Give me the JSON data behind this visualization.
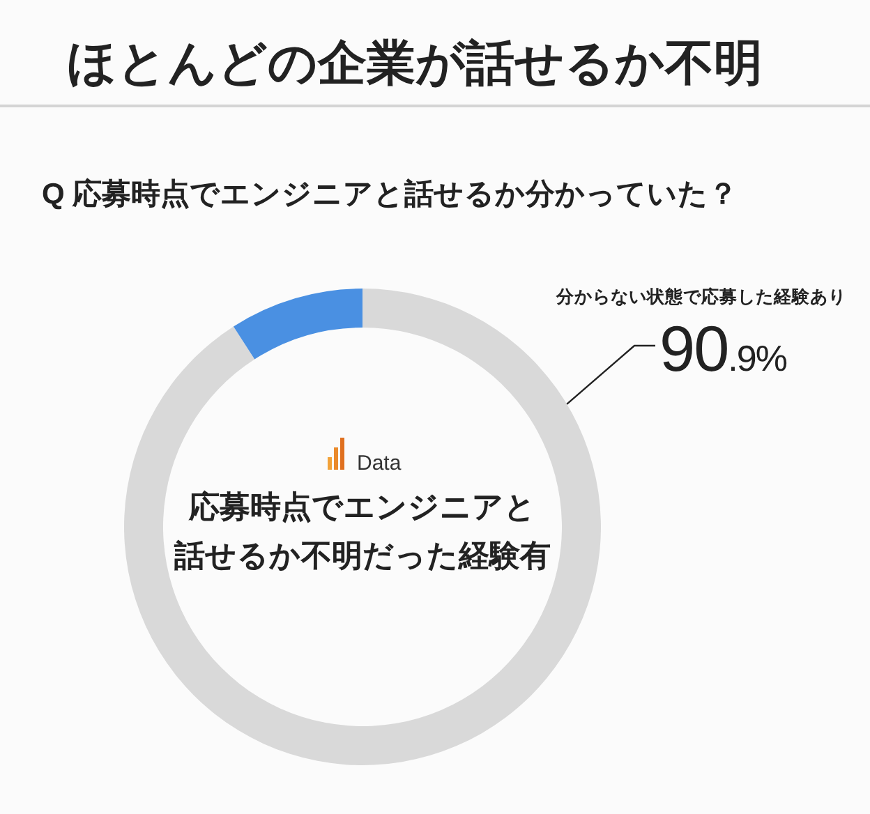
{
  "chart_data": {
    "type": "donut",
    "title": "ほとんどの企業が話せるか不明",
    "subtitle": "Q 応募時点でエンジニアと話せるか分かっていた？",
    "categories": [
      "分からない状態で応募した経験あり",
      null
    ],
    "values": [
      90.9,
      9.1
    ],
    "colors": [
      "#d9d9d9",
      "#4a90e2"
    ],
    "value_labels": [
      "90.9%",
      null
    ],
    "annotations": [
      "Data",
      "応募時点でエンジニアと話せるか不明だった経験有"
    ]
  }
}
